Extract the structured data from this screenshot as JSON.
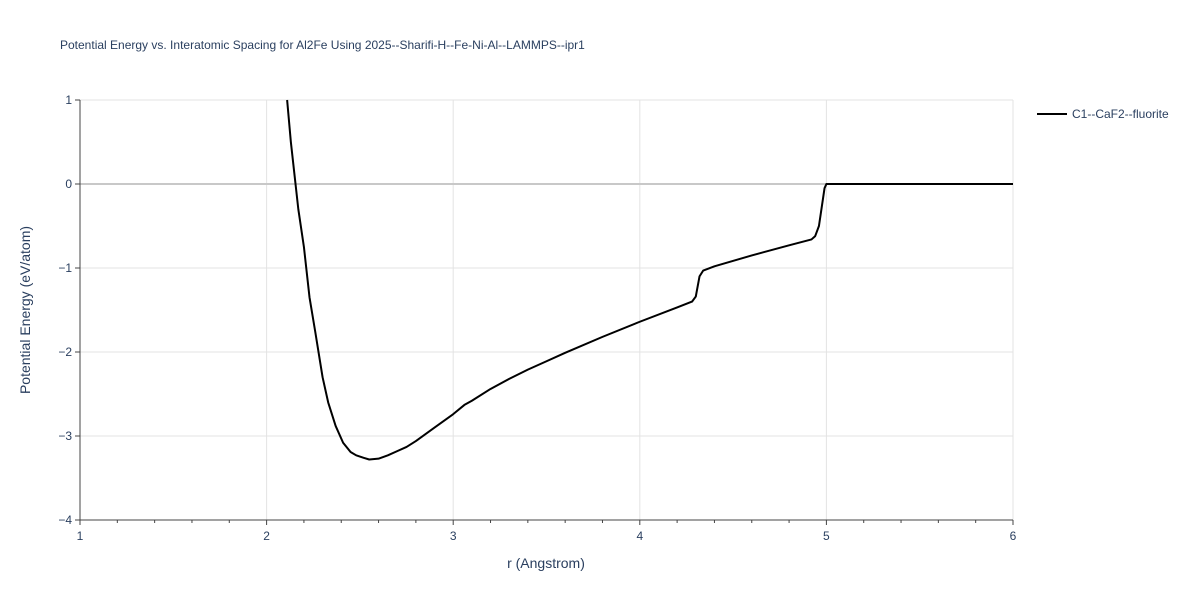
{
  "chart_data": {
    "type": "line",
    "title": "Potential Energy vs. Interatomic Spacing for Al2Fe Using 2025--Sharifi-H--Fe-Ni-Al--LAMMPS--ipr1",
    "xlabel": "r (Angstrom)",
    "ylabel": "Potential Energy (eV/atom)",
    "xlim": [
      1,
      6
    ],
    "ylim": [
      -4,
      1
    ],
    "xticks": [
      1,
      2,
      3,
      4,
      5,
      6
    ],
    "yticks": [
      1,
      0,
      -1,
      -2,
      -3,
      -4
    ],
    "xtick_labels": [
      "1",
      "2",
      "3",
      "4",
      "5",
      "6"
    ],
    "ytick_labels": [
      "1",
      "0",
      "−1",
      "−2",
      "−3",
      "−4"
    ],
    "grid": true,
    "legend_position": "top-right",
    "series": [
      {
        "name": "C1--CaF2--fluorite",
        "color": "#000000",
        "x": [
          2.11,
          2.13,
          2.15,
          2.17,
          2.2,
          2.23,
          2.26,
          2.3,
          2.33,
          2.37,
          2.41,
          2.45,
          2.48,
          2.52,
          2.55,
          2.6,
          2.65,
          2.7,
          2.75,
          2.8,
          2.9,
          3.0,
          3.06,
          3.1,
          3.2,
          3.3,
          3.4,
          3.5,
          3.6,
          3.8,
          4.0,
          4.2,
          4.28,
          4.3,
          4.32,
          4.34,
          4.4,
          4.6,
          4.8,
          4.92,
          4.94,
          4.96,
          4.98,
          4.99,
          5.0,
          5.2,
          5.5,
          6.0
        ],
        "y": [
          1.0,
          0.5,
          0.1,
          -0.3,
          -0.75,
          -1.35,
          -1.75,
          -2.3,
          -2.6,
          -2.88,
          -3.08,
          -3.19,
          -3.23,
          -3.26,
          -3.28,
          -3.27,
          -3.23,
          -3.18,
          -3.13,
          -3.06,
          -2.9,
          -2.74,
          -2.63,
          -2.58,
          -2.44,
          -2.32,
          -2.21,
          -2.11,
          -2.01,
          -1.82,
          -1.64,
          -1.47,
          -1.4,
          -1.34,
          -1.1,
          -1.03,
          -0.98,
          -0.85,
          -0.73,
          -0.66,
          -0.62,
          -0.5,
          -0.2,
          -0.05,
          0.0,
          0.0,
          0.0,
          0.0
        ]
      }
    ]
  }
}
